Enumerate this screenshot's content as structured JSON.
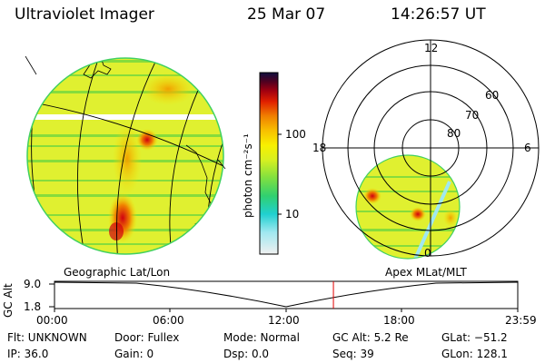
{
  "header": {
    "instrument": "Ultraviolet Imager",
    "date": "25 Mar 07",
    "time": "14:26:57 UT"
  },
  "colorbar": {
    "unit_label": "photon cm⁻²s⁻¹",
    "ticks": [
      "100",
      "10"
    ],
    "colors": [
      "#f0f0f0",
      "#a0e8f0",
      "#20d0d0",
      "#30d070",
      "#80e040",
      "#d8f020",
      "#f8f000",
      "#f8c000",
      "#f08000",
      "#e02000",
      "#a00010",
      "#500020",
      "#101040"
    ]
  },
  "polar": {
    "mlt_labels": [
      "12",
      "18",
      "6",
      "0"
    ],
    "lat_labels": [
      "60",
      "70",
      "80"
    ]
  },
  "panel_titles": {
    "geo": "Geographic Lat/Lon",
    "apex": "Apex MLat/MLT"
  },
  "altitude_plot": {
    "axis_label": "GC Alt",
    "y_ticks": [
      "9.0",
      "1.8"
    ],
    "x_ticks": [
      "00:00",
      "06:00",
      "12:00",
      "18:00",
      "23:59"
    ],
    "marker_time_hours": 14.45
  },
  "info": {
    "filter": "Flt: UNKNOWN",
    "ip": "IP: 36.0",
    "door": "Door: Fullex",
    "gain": "Gain:  0",
    "mode": "Mode: Normal",
    "dsp": "Dsp:     0.0",
    "gc_alt": "GC Alt: 5.2 Re",
    "seq": "Seq: 39",
    "glat": "GLat: −51.2",
    "glon": "GLon: 128.1"
  }
}
